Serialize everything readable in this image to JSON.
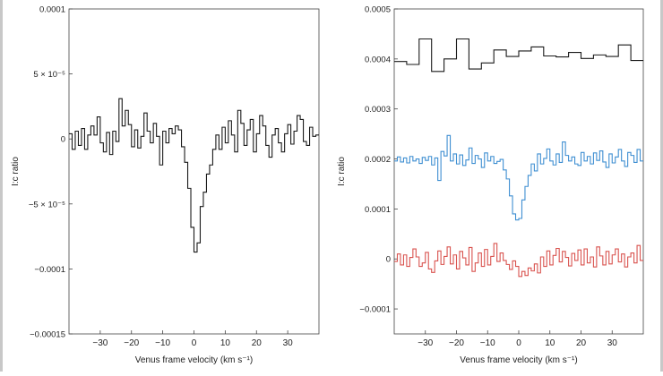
{
  "chart_data": [
    {
      "type": "line",
      "step": true,
      "xlabel": "Venus frame velocity (km s⁻¹)",
      "ylabel": "I:c ratio",
      "xlim": [
        -40,
        40
      ],
      "ylim": [
        -0.00015,
        0.0001
      ],
      "xticks": [
        -30,
        -20,
        -10,
        0,
        10,
        20,
        30
      ],
      "xtick_labels": [
        "−30",
        "−20",
        "−10",
        "0",
        "10",
        "20",
        "30"
      ],
      "yticks": [
        -0.00015,
        -0.0001,
        -5e-05,
        0,
        5e-05,
        0.0001
      ],
      "ytick_labels": [
        "−0.00015",
        "−0.0001",
        "−5 × 10⁻⁵",
        "0",
        "5 × 10⁻⁵",
        "0.0001"
      ],
      "grid": false,
      "series": [
        {
          "color": "#1a1a1a",
          "x": [
            -39.5,
            -38.5,
            -37.5,
            -36.5,
            -35.5,
            -34.5,
            -33.5,
            -32.5,
            -31.5,
            -30.5,
            -29.5,
            -28.5,
            -27.5,
            -26.5,
            -25.5,
            -24.5,
            -23.5,
            -22.5,
            -21.5,
            -20.5,
            -19.5,
            -18.5,
            -17.5,
            -16.5,
            -15.5,
            -14.5,
            -13.5,
            -12.5,
            -11.5,
            -10.5,
            -9.5,
            -8.5,
            -7.5,
            -6.5,
            -5.5,
            -4.5,
            -3.5,
            -2.5,
            -1.5,
            -0.5,
            0.5,
            1.5,
            2.5,
            3.5,
            4.5,
            5.5,
            6.5,
            7.5,
            8.5,
            9.5,
            10.5,
            11.5,
            12.5,
            13.5,
            14.5,
            15.5,
            16.5,
            17.5,
            18.5,
            19.5,
            20.5,
            21.5,
            22.5,
            23.5,
            24.5,
            25.5,
            26.5,
            27.5,
            28.5,
            29.5,
            30.5,
            31.5,
            32.5,
            33.5,
            34.5,
            35.5,
            36.5,
            37.5,
            38.5,
            39.5
          ],
          "y": [
            4e-06,
            -8e-06,
            6e-06,
            -5e-06,
            8e-06,
            -8e-06,
            3e-06,
            1e-05,
            3e-06,
            1.7e-05,
            -3e-06,
            -1e-05,
            5e-06,
            -1.2e-05,
            6e-06,
            -2e-06,
            3.1e-05,
            1e-05,
            2.2e-05,
            1.1e-05,
            -6e-06,
            7e-06,
            -7e-06,
            2e-06,
            2e-05,
            6e-06,
            -3e-06,
            1.2e-05,
            2e-06,
            -2e-05,
            6e-06,
            -3e-06,
            8e-06,
            4e-06,
            1e-05,
            7e-06,
            -6e-06,
            -1.8e-05,
            -3.8e-05,
            -6.8e-05,
            -8.7e-05,
            -8e-05,
            -5.2e-05,
            -4.1e-05,
            -2.7e-05,
            -2e-05,
            -8e-06,
            3e-06,
            -8e-06,
            9e-06,
            -3e-06,
            1.4e-05,
            3e-06,
            -1e-05,
            2.2e-05,
            1.2e-05,
            -5e-06,
            7e-06,
            1.5e-05,
            -1e-05,
            4e-06,
            1.8e-05,
            1e-05,
            -5e-06,
            -1.4e-05,
            3e-06,
            8e-06,
            -3e-06,
            -1e-05,
            4e-06,
            1.1e-05,
            -4e-06,
            6e-06,
            1.8e-05,
            1.5e-05,
            -2e-06,
            -5e-06,
            9e-06,
            2e-06,
            3e-06
          ]
        }
      ]
    },
    {
      "type": "line",
      "step": true,
      "xlabel": "Venus frame velocity (km s⁻¹)",
      "ylabel": "I:c ratio",
      "xlim": [
        -40,
        40
      ],
      "ylim": [
        -0.00015,
        0.0005
      ],
      "xticks": [
        -30,
        -20,
        -10,
        0,
        10,
        20,
        30
      ],
      "xtick_labels": [
        "−30",
        "−20",
        "−10",
        "0",
        "10",
        "20",
        "30"
      ],
      "yticks": [
        -0.0001,
        0,
        0.0001,
        0.0002,
        0.0003,
        0.0004,
        0.0005
      ],
      "ytick_labels": [
        "−0.0001",
        "0",
        "0.0001",
        "0.0002",
        "0.0003",
        "0.0004",
        "0.0005"
      ],
      "grid": false,
      "series": [
        {
          "color": "#1a1a1a",
          "x": [
            -38,
            -34,
            -30,
            -26,
            -22,
            -18,
            -14,
            -10,
            -6,
            -2,
            2,
            6,
            10,
            14,
            18,
            22,
            26,
            30,
            34,
            38
          ],
          "y": [
            0.000395,
            0.000389,
            0.00044,
            0.000375,
            0.0004,
            0.00044,
            0.00038,
            0.000392,
            0.000418,
            0.000405,
            0.000416,
            0.000424,
            0.000406,
            0.000404,
            0.000413,
            0.000401,
            0.000408,
            0.000405,
            0.000428,
            0.000397
          ]
        },
        {
          "color": "#3f8fd2",
          "x": [
            -39.5,
            -38.5,
            -37.5,
            -36.5,
            -35.5,
            -34.5,
            -33.5,
            -32.5,
            -31.5,
            -30.5,
            -29.5,
            -28.5,
            -27.5,
            -26.5,
            -25.5,
            -24.5,
            -23.5,
            -22.5,
            -21.5,
            -20.5,
            -19.5,
            -18.5,
            -17.5,
            -16.5,
            -15.5,
            -14.5,
            -13.5,
            -12.5,
            -11.5,
            -10.5,
            -9.5,
            -8.5,
            -7.5,
            -6.5,
            -5.5,
            -4.5,
            -3.5,
            -2.5,
            -1.5,
            -0.5,
            0.5,
            1.5,
            2.5,
            3.5,
            4.5,
            5.5,
            6.5,
            7.5,
            8.5,
            9.5,
            10.5,
            11.5,
            12.5,
            13.5,
            14.5,
            15.5,
            16.5,
            17.5,
            18.5,
            19.5,
            20.5,
            21.5,
            22.5,
            23.5,
            24.5,
            25.5,
            26.5,
            27.5,
            28.5,
            29.5,
            30.5,
            31.5,
            32.5,
            33.5,
            34.5,
            35.5,
            36.5,
            37.5,
            38.5,
            39.5
          ],
          "y": [
            0.000196,
            0.000204,
            0.000194,
            0.000202,
            0.000192,
            0.000205,
            0.000196,
            0.0002,
            0.000191,
            0.000203,
            0.000197,
            0.000205,
            0.000188,
            0.000202,
            0.000157,
            0.000215,
            0.000206,
            0.000247,
            0.000196,
            0.00021,
            0.00019,
            0.000208,
            0.000187,
            0.000198,
            0.000222,
            0.000191,
            0.000207,
            0.0002,
            0.000183,
            0.000212,
            0.000196,
            0.000205,
            0.000191,
            0.000195,
            0.000199,
            0.000178,
            0.00016,
            0.000126,
            9e-05,
            7.8e-05,
            8.1e-05,
            0.000118,
            0.000145,
            0.000167,
            0.00019,
            0.000176,
            0.00021,
            0.00019,
            0.000201,
            0.00022,
            0.000196,
            0.000188,
            0.00021,
            0.000193,
            0.000234,
            0.000207,
            0.000196,
            0.000204,
            0.00019,
            0.000187,
            0.000213,
            0.000196,
            0.000205,
            0.00019,
            0.000212,
            0.000197,
            0.000216,
            0.000194,
            0.000183,
            0.00021,
            0.000192,
            0.000204,
            0.000219,
            0.000196,
            0.000185,
            0.000213,
            0.000207,
            0.000193,
            0.000219,
            0.000196
          ]
        },
        {
          "color": "#d9534f",
          "x": [
            -39.5,
            -38.5,
            -37.5,
            -36.5,
            -35.5,
            -34.5,
            -33.5,
            -32.5,
            -31.5,
            -30.5,
            -29.5,
            -28.5,
            -27.5,
            -26.5,
            -25.5,
            -24.5,
            -23.5,
            -22.5,
            -21.5,
            -20.5,
            -19.5,
            -18.5,
            -17.5,
            -16.5,
            -15.5,
            -14.5,
            -13.5,
            -12.5,
            -11.5,
            -10.5,
            -9.5,
            -8.5,
            -7.5,
            -6.5,
            -5.5,
            -4.5,
            -3.5,
            -2.5,
            -1.5,
            -0.5,
            0.5,
            1.5,
            2.5,
            3.5,
            4.5,
            5.5,
            6.5,
            7.5,
            8.5,
            9.5,
            10.5,
            11.5,
            12.5,
            13.5,
            14.5,
            15.5,
            16.5,
            17.5,
            18.5,
            19.5,
            20.5,
            21.5,
            22.5,
            23.5,
            24.5,
            25.5,
            26.5,
            27.5,
            28.5,
            29.5,
            30.5,
            31.5,
            32.5,
            33.5,
            34.5,
            35.5,
            36.5,
            37.5,
            38.5,
            39.5
          ],
          "y": [
            -5e-06,
            1e-05,
            -1.2e-05,
            8e-06,
            -1.5e-05,
            3e-06,
            2e-05,
            4e-06,
            -1.5e-05,
            -8e-06,
            1.3e-05,
            -2e-05,
            -2.7e-05,
            -4e-06,
            1.6e-05,
            -1.1e-05,
            5e-06,
            2.4e-05,
            -1e-05,
            8e-06,
            -2e-05,
            1.5e-05,
            2e-06,
            -1.2e-05,
            2.3e-05,
            -2.5e-05,
            -8e-06,
            1.2e-05,
            -1.5e-05,
            1.9e-05,
            -1.2e-05,
            5e-06,
            3.1e-05,
            -5e-06,
            1.2e-05,
            -3e-06,
            -1.1e-05,
            -2.1e-05,
            -4e-06,
            -1.5e-05,
            -3.5e-05,
            -2.5e-05,
            -3.3e-05,
            -1.8e-05,
            -2.4e-05,
            -1e-05,
            -2.8e-05,
            4e-06,
            -1.5e-05,
            1.6e-05,
            -1.2e-05,
            7e-06,
            2.1e-05,
            -6e-06,
            1.5e-05,
            3e-06,
            -1.4e-05,
            1.1e-05,
            -3e-06,
            1.8e-05,
            -1.2e-05,
            2e-05,
            -8e-06,
            4e-06,
            -1.6e-05,
            2.4e-05,
            6e-06,
            -1.2e-05,
            1.5e-05,
            -1e-05,
            8e-06,
            2e-05,
            -6e-06,
            1e-05,
            -1.6e-05,
            4e-06,
            1.2e-05,
            -8e-06,
            2.7e-05,
            -3e-06
          ]
        }
      ]
    }
  ]
}
